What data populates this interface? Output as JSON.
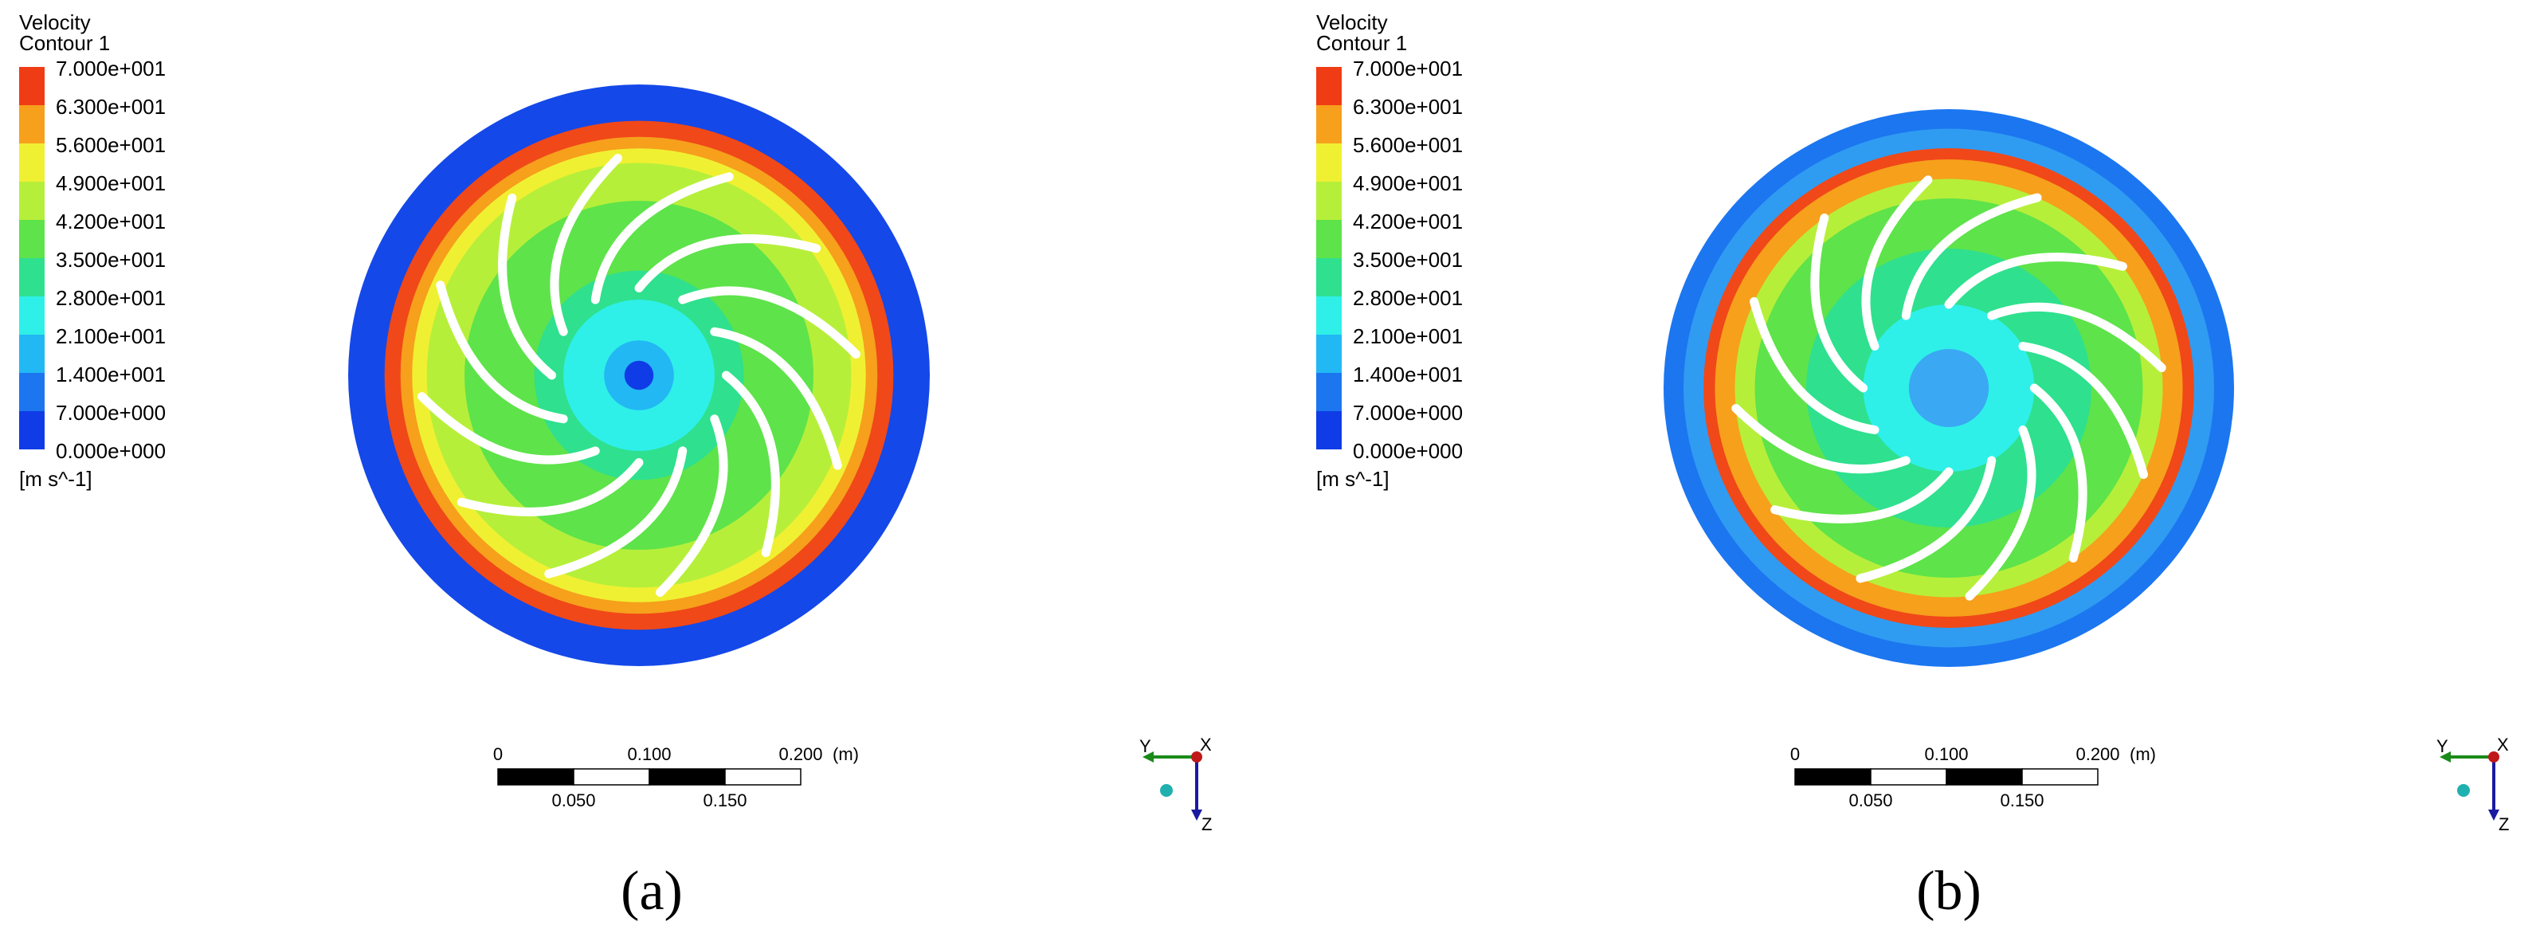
{
  "panels": [
    {
      "legend": {
        "title": "Velocity",
        "subtitle": "Contour 1",
        "levels": [
          "7.000e+001",
          "6.300e+001",
          "5.600e+001",
          "4.900e+001",
          "4.200e+001",
          "3.500e+001",
          "2.800e+001",
          "2.100e+001",
          "1.400e+001",
          "7.000e+000",
          "0.000e+000"
        ],
        "unit": "[m s^-1]"
      },
      "scale_bar": {
        "top_labels": [
          "0",
          "0.100",
          "0.200",
          "(m)"
        ],
        "bottom_labels": [
          "0.050",
          "0.150"
        ]
      },
      "axes": {
        "y": "Y",
        "x": "X",
        "z": "Z"
      },
      "caption": "(a)"
    },
    {
      "legend": {
        "title": "Velocity",
        "subtitle": "Contour 1",
        "levels": [
          "7.000e+001",
          "6.300e+001",
          "5.600e+001",
          "4.900e+001",
          "4.200e+001",
          "3.500e+001",
          "2.800e+001",
          "2.100e+001",
          "1.400e+001",
          "7.000e+000",
          "0.000e+000"
        ],
        "unit": "[m s^-1]"
      },
      "scale_bar": {
        "top_labels": [
          "0",
          "0.100",
          "0.200",
          "(m)"
        ],
        "bottom_labels": [
          "0.050",
          "0.150"
        ]
      },
      "axes": {
        "y": "Y",
        "x": "X",
        "z": "Z"
      },
      "caption": "(b)"
    }
  ]
}
